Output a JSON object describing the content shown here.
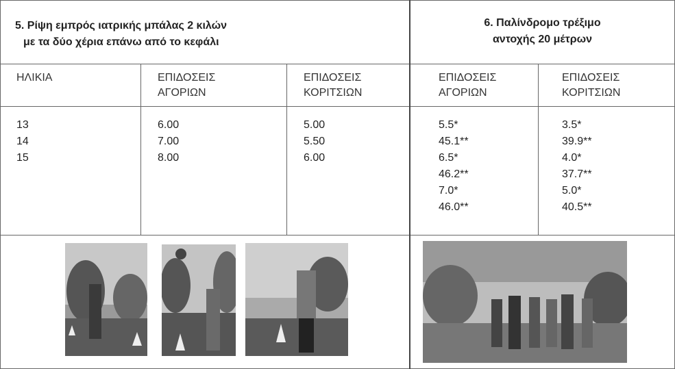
{
  "left_section": {
    "title": [
      "5. Ρίψη εμπρός ιατρικής μπάλας 2 κιλών",
      "με τα δύο χέρια επάνω από το κεφάλι"
    ]
  },
  "right_section": {
    "title": [
      "6.  Παλίνδρομο τρέξιμο",
      "αντοχής 20 μέτρων"
    ]
  },
  "table": {
    "headers": [
      [
        "ΗΛΙΚΙΑ"
      ],
      [
        "ΕΠΙΔΟΣΕΙΣ",
        "ΑΓΟΡΙΩΝ"
      ],
      [
        "ΕΠΙΔΟΣΕΙΣ",
        "ΚΟΡΙΤΣΙΩΝ"
      ],
      [
        "ΕΠΙΔΟΣΕΙΣ",
        "ΑΓΟΡΙΩΝ"
      ],
      [
        "ΕΠΙΔΟΣΕΙΣ",
        "ΚΟΡΙΤΣΙΩΝ"
      ]
    ],
    "columns": [
      [
        "13",
        "14",
        "15"
      ],
      [
        "6.00",
        "7.00",
        "8.00"
      ],
      [
        "5.00",
        "5.50",
        "6.00"
      ],
      [
        "5.5*",
        "45.1**",
        "6.5*",
        "46.2**",
        "7.0*",
        "46.0**"
      ],
      [
        "3.5*",
        "39.9**",
        "4.0*",
        "37.7**",
        "5.0*",
        "40.5**"
      ]
    ]
  }
}
